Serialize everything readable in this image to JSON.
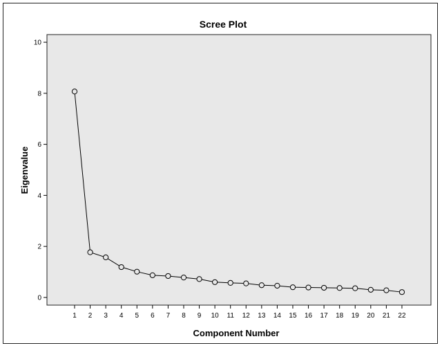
{
  "chart_data": {
    "type": "line",
    "title": "Scree Plot",
    "xlabel": "Component Number",
    "ylabel": "Eigenvalue",
    "x": [
      1,
      2,
      3,
      4,
      5,
      6,
      7,
      8,
      9,
      10,
      11,
      12,
      13,
      14,
      15,
      16,
      17,
      18,
      19,
      20,
      21,
      22
    ],
    "y_ticks": [
      0,
      2,
      4,
      6,
      8,
      10
    ],
    "ylim": [
      -0.3,
      10.3
    ],
    "series": [
      {
        "values": [
          8.07,
          1.77,
          1.57,
          1.19,
          1.01,
          0.87,
          0.84,
          0.78,
          0.72,
          0.6,
          0.57,
          0.55,
          0.48,
          0.46,
          0.4,
          0.39,
          0.38,
          0.37,
          0.36,
          0.3,
          0.28,
          0.21
        ]
      }
    ],
    "grid": false,
    "colors": {
      "plot_background": "#e8e8e8",
      "line": "#000000",
      "marker_fill": "#e8e8e8"
    }
  }
}
